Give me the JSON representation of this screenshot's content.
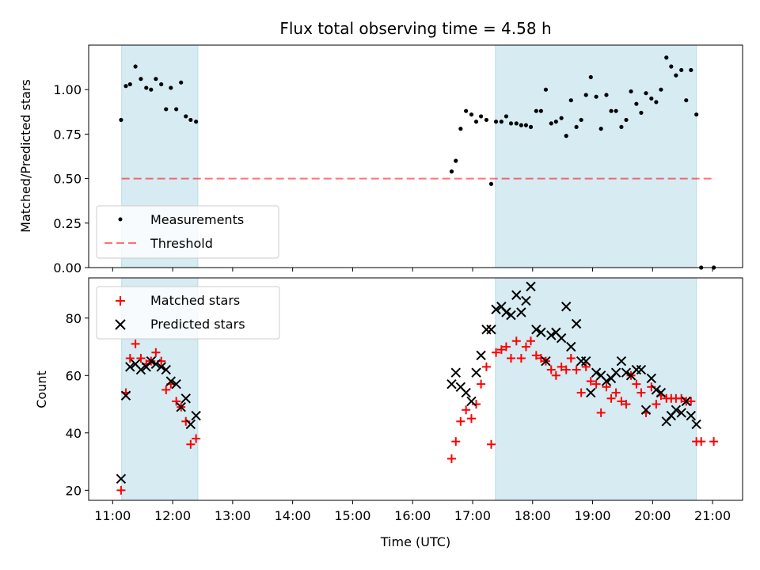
{
  "chart_data": [
    {
      "type": "scatter",
      "title": "Flux total observing time = 4.58 h",
      "xlabel": "",
      "ylabel": "Matched/Predicted stars",
      "xlim": [
        10.6,
        21.5
      ],
      "ylim": [
        0.0,
        1.25
      ],
      "yticks": [
        0.0,
        0.25,
        0.5,
        0.75,
        1.0
      ],
      "ytick_labels": [
        "0.00",
        "0.25",
        "0.50",
        "0.75",
        "1.00"
      ],
      "legend": [
        "Measurements",
        "Threshold"
      ],
      "threshold": {
        "y": 0.5,
        "x_range": [
          11.15,
          21.05
        ],
        "color": "#ff0000"
      },
      "shaded_intervals": [
        [
          11.15,
          12.42
        ],
        [
          17.38,
          20.73
        ]
      ],
      "series": [
        {
          "name": "Measurements",
          "color": "#000000",
          "x": [
            11.14,
            11.22,
            11.29,
            11.38,
            11.47,
            11.56,
            11.64,
            11.72,
            11.81,
            11.89,
            11.97,
            12.06,
            12.14,
            12.22,
            12.3,
            12.39,
            16.65,
            16.72,
            16.8,
            16.89,
            16.98,
            17.06,
            17.14,
            17.23,
            17.31,
            17.39,
            17.48,
            17.56,
            17.64,
            17.73,
            17.81,
            17.89,
            17.97,
            18.06,
            18.14,
            18.22,
            18.31,
            18.39,
            18.48,
            18.56,
            18.64,
            18.73,
            18.81,
            18.89,
            18.97,
            19.06,
            19.14,
            19.23,
            19.31,
            19.39,
            19.48,
            19.56,
            19.64,
            19.73,
            19.81,
            19.89,
            19.98,
            20.06,
            20.14,
            20.23,
            20.31,
            20.39,
            20.48,
            20.56,
            20.64,
            20.73,
            20.81,
            21.02
          ],
          "y": [
            0.83,
            1.02,
            1.03,
            1.13,
            1.06,
            1.01,
            1.0,
            1.06,
            1.03,
            0.89,
            1.01,
            0.89,
            1.04,
            0.85,
            0.83,
            0.82,
            0.54,
            0.6,
            0.78,
            0.88,
            0.86,
            0.82,
            0.85,
            0.83,
            0.47,
            0.82,
            0.82,
            0.85,
            0.81,
            0.81,
            0.8,
            0.8,
            0.79,
            0.88,
            0.88,
            1.0,
            0.81,
            0.82,
            0.84,
            0.74,
            0.94,
            0.79,
            0.83,
            0.97,
            1.07,
            0.96,
            0.78,
            0.97,
            0.88,
            0.88,
            0.79,
            0.83,
            0.99,
            0.92,
            0.87,
            0.98,
            0.95,
            0.93,
            1.0,
            1.18,
            1.13,
            1.08,
            1.11,
            0.94,
            1.11,
            0.86,
            0.0,
            0.0
          ]
        }
      ]
    },
    {
      "type": "scatter",
      "title": "",
      "xlabel": "Time (UTC)",
      "ylabel": "Count",
      "xlim": [
        10.6,
        21.5
      ],
      "ylim": [
        16.5,
        94
      ],
      "yticks": [
        20,
        40,
        60,
        80
      ],
      "ytick_labels": [
        "20",
        "40",
        "60",
        "80"
      ],
      "xticks": [
        11,
        12,
        13,
        14,
        15,
        16,
        17,
        18,
        19,
        20,
        21
      ],
      "xtick_labels": [
        "11:00",
        "12:00",
        "13:00",
        "14:00",
        "15:00",
        "16:00",
        "17:00",
        "18:00",
        "19:00",
        "20:00",
        "21:00"
      ],
      "legend": [
        "Matched stars",
        "Predicted stars"
      ],
      "shaded_intervals": [
        [
          11.15,
          12.42
        ],
        [
          17.38,
          20.73
        ]
      ],
      "series": [
        {
          "name": "Matched stars",
          "color": "#ff0000",
          "marker": "+",
          "x": [
            11.14,
            11.22,
            11.29,
            11.38,
            11.47,
            11.56,
            11.64,
            11.72,
            11.81,
            11.89,
            11.97,
            12.06,
            12.14,
            12.22,
            12.3,
            12.39,
            16.65,
            16.72,
            16.8,
            16.89,
            16.98,
            17.06,
            17.14,
            17.23,
            17.31,
            17.39,
            17.48,
            17.56,
            17.64,
            17.73,
            17.81,
            17.89,
            17.97,
            18.06,
            18.14,
            18.22,
            18.31,
            18.39,
            18.48,
            18.56,
            18.64,
            18.73,
            18.81,
            18.89,
            18.97,
            19.06,
            19.14,
            19.23,
            19.31,
            19.39,
            19.48,
            19.56,
            19.64,
            19.73,
            19.81,
            19.89,
            19.98,
            20.06,
            20.14,
            20.23,
            20.31,
            20.39,
            20.48,
            20.56,
            20.64,
            20.73,
            20.81,
            21.02
          ],
          "y": [
            20,
            54,
            66,
            71,
            66,
            64,
            65,
            68,
            65,
            55,
            57,
            51,
            49,
            44,
            36,
            38,
            31,
            37,
            44,
            48,
            45,
            50,
            57,
            63,
            36,
            68,
            69,
            70,
            66,
            72,
            66,
            70,
            72,
            67,
            66,
            65,
            62,
            60,
            63,
            62,
            66,
            62,
            54,
            63,
            58,
            57,
            47,
            56,
            52,
            54,
            51,
            50,
            60,
            57,
            54,
            47,
            56,
            50,
            53,
            52,
            52,
            52,
            52,
            51,
            51,
            37,
            37,
            37
          ]
        },
        {
          "name": "Predicted stars",
          "color": "#000000",
          "marker": "x",
          "x": [
            11.14,
            11.22,
            11.29,
            11.38,
            11.47,
            11.56,
            11.64,
            11.72,
            11.81,
            11.89,
            11.97,
            12.06,
            12.14,
            12.22,
            12.3,
            12.39,
            16.65,
            16.72,
            16.8,
            16.89,
            16.98,
            17.06,
            17.14,
            17.23,
            17.31,
            17.39,
            17.48,
            17.56,
            17.64,
            17.73,
            17.81,
            17.89,
            17.97,
            18.06,
            18.14,
            18.22,
            18.31,
            18.39,
            18.48,
            18.56,
            18.64,
            18.73,
            18.81,
            18.89,
            18.97,
            19.06,
            19.14,
            19.23,
            19.31,
            19.39,
            19.48,
            19.56,
            19.64,
            19.73,
            19.81,
            19.89,
            19.98,
            20.06,
            20.14,
            20.23,
            20.31,
            20.39,
            20.48,
            20.56,
            20.64,
            20.73
          ],
          "y": [
            24,
            53,
            63,
            64,
            62,
            63,
            65,
            64,
            63,
            62,
            58,
            57,
            49,
            52,
            43,
            46,
            57,
            61,
            56,
            54,
            51,
            61,
            67,
            76,
            76,
            83,
            84,
            82,
            81,
            88,
            82,
            86,
            91,
            76,
            75,
            65,
            74,
            75,
            73,
            84,
            70,
            78,
            65,
            65,
            54,
            61,
            60,
            58,
            59,
            61,
            65,
            61,
            60,
            62,
            62,
            48,
            59,
            55,
            54,
            44,
            46,
            48,
            47,
            51,
            46,
            43
          ]
        }
      ]
    }
  ]
}
